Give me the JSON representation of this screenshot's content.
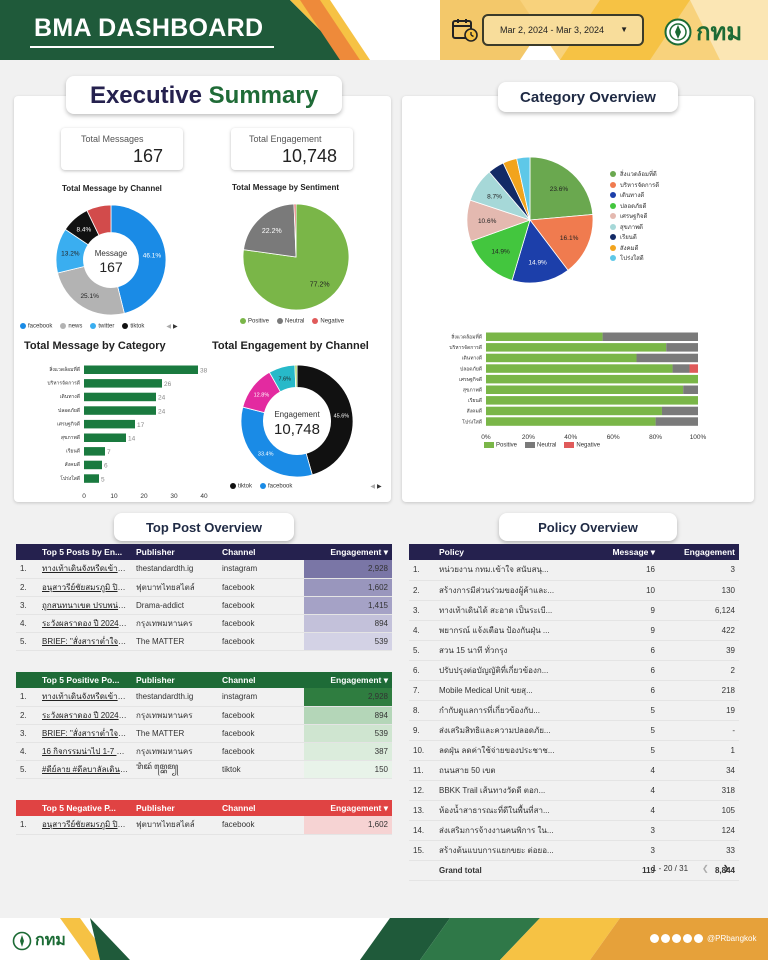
{
  "header": {
    "title": "BMA DASHBOARD",
    "date_range": "Mar 2, 2024 - Mar 3, 2024",
    "logo_text": "กทม"
  },
  "colors": {
    "dark_green": "#1f5a3a",
    "yellow": "#f6c244",
    "orange": "#ee8a3a",
    "light_yellow": "#f8dd9b"
  },
  "executive": {
    "heading_part1": "Executive ",
    "heading_part2": "Summary",
    "kpis": [
      {
        "label": "Total Messages",
        "value": "167"
      },
      {
        "label": "Total Engagement",
        "value": "10,748"
      }
    ]
  },
  "chart_data": [
    {
      "type": "pie",
      "title": "Total Message by Channel",
      "center_label": "Message",
      "center_value": "167",
      "slices": [
        {
          "name": "facebook",
          "value": 46.1,
          "label": "46.1%",
          "color": "#1a8be6"
        },
        {
          "name": "news",
          "value": 25.1,
          "label": "25.1%",
          "color": "#b3b3b3"
        },
        {
          "name": "twitter",
          "value": 13.2,
          "label": "13.2%",
          "color": "#3aaef0"
        },
        {
          "name": "tiktok",
          "value": 8.4,
          "label": "8.4%",
          "color": "#111111"
        },
        {
          "name": "other",
          "value": 7.2,
          "label": "",
          "color": "#d24b4b"
        }
      ],
      "legend": [
        "facebook",
        "news",
        "twitter",
        "tiktok"
      ]
    },
    {
      "type": "pie",
      "title": "Total Message by Sentiment",
      "slices": [
        {
          "name": "Positive",
          "value": 77.2,
          "label": "77.2%",
          "color": "#7ab648"
        },
        {
          "name": "Neutral",
          "value": 22.2,
          "label": "22.2%",
          "color": "#7a7a7a"
        },
        {
          "name": "Negative",
          "value": 0.6,
          "label": "",
          "color": "#e05a5a"
        }
      ],
      "legend": [
        "Positive",
        "Neutral",
        "Negative"
      ]
    },
    {
      "type": "bar",
      "title": "Total Message by Category",
      "categories": [
        "สิ่งแวดล้อมที่ดี",
        "บริหารจัดการดี",
        "เดินทางดี",
        "ปลอดภัยดี",
        "เศรษฐกิจดี",
        "สุขภาพดี",
        "เรียนดี",
        "สังคมดี",
        "โปร่งใสดี"
      ],
      "values": [
        38,
        26,
        24,
        24,
        17,
        14,
        7,
        6,
        5
      ],
      "xticks": [
        0,
        10,
        20,
        30,
        40
      ],
      "xlim": [
        0,
        40
      ]
    },
    {
      "type": "pie",
      "title": "Total Engagement by Channel",
      "center_label": "Engagement",
      "center_value": "10,748",
      "slices": [
        {
          "name": "tiktok",
          "value": 45.6,
          "label": "45.6%",
          "color": "#111111"
        },
        {
          "name": "facebook",
          "value": 33.4,
          "label": "33.4%",
          "color": "#1a8be6"
        },
        {
          "name": "other1",
          "value": 12.8,
          "label": "12.8%",
          "color": "#e32aa0"
        },
        {
          "name": "other2",
          "value": 7.6,
          "label": "7.6%",
          "color": "#27b9c9"
        },
        {
          "name": "other3",
          "value": 0.6,
          "label": "",
          "color": "#9ad04a"
        }
      ],
      "legend": [
        "tiktok",
        "facebook"
      ]
    },
    {
      "type": "pie",
      "title": "Category Overview",
      "slices": [
        {
          "name": "สิ่งแวดล้อมที่ดี",
          "value": 23.6,
          "label": "23.6%",
          "color": "#6aa84f"
        },
        {
          "name": "บริหารจัดการดี",
          "value": 16.1,
          "label": "16.1%",
          "color": "#f07b4f"
        },
        {
          "name": "เดินทางดี",
          "value": 14.9,
          "label": "14.9%",
          "color": "#1c3faa"
        },
        {
          "name": "ปลอดภัยดี",
          "value": 14.9,
          "label": "14.9%",
          "color": "#43c63e"
        },
        {
          "name": "เศรษฐกิจดี",
          "value": 10.6,
          "label": "10.6%",
          "color": "#e4b9b0"
        },
        {
          "name": "สุขภาพดี",
          "value": 8.7,
          "label": "8.7%",
          "color": "#a6d8d8"
        },
        {
          "name": "เรียนดี",
          "value": 4.2,
          "label": "",
          "color": "#132a66"
        },
        {
          "name": "สังคมดี",
          "value": 3.6,
          "label": "",
          "color": "#f2a41d"
        },
        {
          "name": "โปร่งใสดี",
          "value": 3.4,
          "label": "",
          "color": "#5ec8e8"
        }
      ]
    },
    {
      "type": "bar",
      "title": "Category Sentiment",
      "stacked": true,
      "orientation": "horizontal",
      "categories": [
        "สิ่งแวดล้อมที่ดี",
        "บริหารจัดการดี",
        "เดินทางดี",
        "ปลอดภัยดี",
        "เศรษฐกิจดี",
        "สุขภาพดี",
        "เรียนดี",
        "สังคมดี",
        "โปร่งใสดี"
      ],
      "series": [
        {
          "name": "Positive",
          "color": "#7ab648",
          "values": [
            55,
            85,
            71,
            88,
            100,
            93,
            100,
            83,
            80
          ]
        },
        {
          "name": "Neutral",
          "color": "#7a7a7a",
          "values": [
            45,
            15,
            29,
            8,
            0,
            7,
            0,
            17,
            20
          ]
        },
        {
          "name": "Negative",
          "color": "#e05a5a",
          "values": [
            0,
            0,
            0,
            4,
            0,
            0,
            0,
            0,
            0
          ]
        }
      ],
      "xticks": [
        "0%",
        "20%",
        "40%",
        "60%",
        "80%",
        "100%"
      ]
    }
  ],
  "top_post": {
    "heading": "Top Post Overview",
    "columns": [
      "Publisher",
      "Channel",
      "Engagement ▾"
    ],
    "tables": [
      {
        "title": "Top 5 Posts by En...",
        "header_color": "#25214e",
        "rows": [
          {
            "n": "1.",
            "post": "ทางเท้าเดินจังหรีดเข้าให้ลี...",
            "publisher": "thestandardth.ig",
            "channel": "instagram",
            "eng": "2,928",
            "shade": "#7a76a6"
          },
          {
            "n": "2.",
            "post": "อนุสาวรีย์ชัยสมรภูมิ ปิดการ...",
            "publisher": "ฟุตบาทไทยสไตล์",
            "channel": "facebook",
            "eng": "1,602",
            "shade": "#9996bd"
          },
          {
            "n": "3.",
            "post": "ถูกสนทนาเขต ปรบพน่วยรัฐ...",
            "publisher": "Drama-addict",
            "channel": "facebook",
            "eng": "1,415",
            "shade": "#a5a2c6"
          },
          {
            "n": "4.",
            "post": "ระวังผลราดอง ปี 2024 ได้...",
            "publisher": "กรุงเทพมหานคร",
            "channel": "facebook",
            "eng": "894",
            "shade": "#c3c1da"
          },
          {
            "n": "5.",
            "post": "BRIEF: \"สั่งสาราต่ำใจประ...",
            "publisher": "The MATTER",
            "channel": "facebook",
            "eng": "539",
            "shade": "#d3d2e5"
          }
        ]
      },
      {
        "title": "Top 5 Positive Po...",
        "header_color": "#1e6b37",
        "rows": [
          {
            "n": "1.",
            "post": "ทางเท้าเดินจังหรีดเข้าให้ลี...",
            "publisher": "thestandardth.ig",
            "channel": "instagram",
            "eng": "2,928",
            "shade": "#2f7d40"
          },
          {
            "n": "2.",
            "post": "ระวังผลราดอง ปี 2024 ได้...",
            "publisher": "กรุงเทพมหานคร",
            "channel": "facebook",
            "eng": "894",
            "shade": "#b4d6b8"
          },
          {
            "n": "3.",
            "post": "BRIEF: \"สั่งสาราต่ำใจประ...",
            "publisher": "The MATTER",
            "channel": "facebook",
            "eng": "539",
            "shade": "#cfe5d0"
          },
          {
            "n": "4.",
            "post": "16 กิจกรรมน่าไป 1-7 มี...",
            "publisher": "กรุงเทพมหานคร",
            "channel": "facebook",
            "eng": "387",
            "shade": "#dbecdc"
          },
          {
            "n": "5.",
            "post": "#ดีย์ลาย #ดีลบาลัลเดินพัน...",
            "publisher": "ꦫꦶꦢꦂ ꦩ꧀ꦧꦺꦩ꧀",
            "channel": "tiktok",
            "eng": "150",
            "shade": "#e8f3e9"
          }
        ]
      },
      {
        "title": "Top 5 Negative P...",
        "header_color": "#e04343",
        "rows": [
          {
            "n": "1.",
            "post": "อนุสาวรีย์ชัยสมรภูมิ ปิดการ...",
            "publisher": "ฟุตบาทไทยสไตล์",
            "channel": "facebook",
            "eng": "1,602",
            "shade": "#f6d3d3"
          }
        ]
      }
    ]
  },
  "policy": {
    "heading": "Policy Overview",
    "columns": [
      "Policy",
      "Message ▾",
      "Engagement"
    ],
    "rows": [
      {
        "n": "1.",
        "policy": "หน่วยงาน กทม.เข้าใจ สนับสนุ...",
        "msg": "16",
        "eng": "3"
      },
      {
        "n": "2.",
        "policy": "สร้างการมีส่วนร่วมของผู้ค้าและ...",
        "msg": "10",
        "eng": "130"
      },
      {
        "n": "3.",
        "policy": "ทางเท้าเดินได้ สะอาด เป็นระเบี...",
        "msg": "9",
        "eng": "6,124"
      },
      {
        "n": "4.",
        "policy": "พยากรณ์ แจ้งเตือน ป้องกันฝุ่น ...",
        "msg": "9",
        "eng": "422"
      },
      {
        "n": "5.",
        "policy": "สวน 15 นาที ทั่วกรุง",
        "msg": "6",
        "eng": "39"
      },
      {
        "n": "6.",
        "policy": "ปรับปรุงต่อบัญญัติที่เกี่ยวข้องก...",
        "msg": "6",
        "eng": "2"
      },
      {
        "n": "7.",
        "policy": "Mobile Medical Unit ขยสุ...",
        "msg": "6",
        "eng": "218"
      },
      {
        "n": "8.",
        "policy": "กำกับดูแลการที่เกี่ยวข้องกับ...",
        "msg": "5",
        "eng": "19"
      },
      {
        "n": "9.",
        "policy": "ส่งเสริมสิทธิและความปลอดภัย...",
        "msg": "5",
        "eng": "-"
      },
      {
        "n": "10.",
        "policy": "ลดฝุ่น ลดค่าใช้จ่ายของประชาช...",
        "msg": "5",
        "eng": "1"
      },
      {
        "n": "11.",
        "policy": "ถนนสาย 50 เขต",
        "msg": "4",
        "eng": "34"
      },
      {
        "n": "12.",
        "policy": "BBKK Trail เส้นทางวัดดี ตอก...",
        "msg": "4",
        "eng": "318"
      },
      {
        "n": "13.",
        "policy": "ห้องน้ำสาธารณะที่ดีในพื้นที่สา...",
        "msg": "4",
        "eng": "105"
      },
      {
        "n": "14.",
        "policy": "ส่งเสริมการจ้างงานคนพิการ ใน...",
        "msg": "3",
        "eng": "124"
      },
      {
        "n": "15.",
        "policy": "สร้างต้นแบบการแยกขยะ ต่อยอ...",
        "msg": "3",
        "eng": "33"
      }
    ],
    "total_label": "Grand total",
    "total_msg": "119",
    "total_eng": "8,844",
    "pager": "1 - 20 / 31"
  },
  "footer": {
    "logo_text": "กทม",
    "social": "@PRbangkok"
  }
}
